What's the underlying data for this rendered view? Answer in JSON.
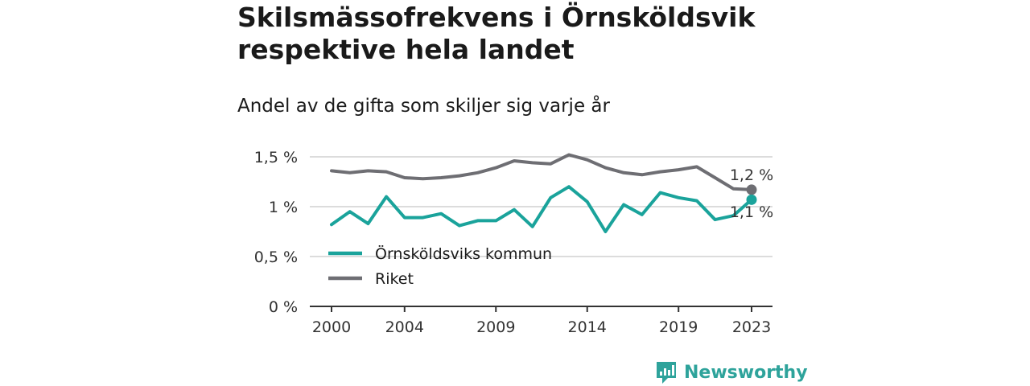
{
  "title": "Skilsmässofrekvens i Örnsköldsvik respektive hela landet",
  "subtitle": "Andel av de gifta som skiljer sig varje år",
  "brand": {
    "name": "Newsworthy",
    "icon": "newsworthy-logo-icon"
  },
  "colors": {
    "kommun": "#1aa39b",
    "riket": "#6e6e73",
    "grid": "#d0d0d0",
    "axis": "#333333",
    "brand": "#2ea39b"
  },
  "chart_data": {
    "type": "line",
    "title": "Skilsmässofrekvens i Örnsköldsvik respektive hela landet",
    "subtitle": "Andel av de gifta som skiljer sig varje år",
    "x": [
      2000,
      2001,
      2002,
      2003,
      2004,
      2005,
      2006,
      2007,
      2008,
      2009,
      2010,
      2011,
      2012,
      2013,
      2014,
      2015,
      2016,
      2017,
      2018,
      2019,
      2020,
      2021,
      2022,
      2023
    ],
    "x_ticks": [
      2000,
      2004,
      2009,
      2014,
      2019,
      2023
    ],
    "x_tick_labels": [
      "2000",
      "2004",
      "2009",
      "2014",
      "2019",
      "2023"
    ],
    "y_ticks": [
      0,
      0.5,
      1,
      1.5
    ],
    "y_tick_labels": [
      "0 %",
      "0,5 %",
      "1 %",
      "1,5 %"
    ],
    "ylim": [
      0,
      1.5
    ],
    "grid": true,
    "legend_position": "bottom-left",
    "series": [
      {
        "name": "Örnsköldsviks kommun",
        "key": "kommun",
        "values": [
          0.82,
          0.95,
          0.83,
          1.1,
          0.89,
          0.89,
          0.93,
          0.81,
          0.86,
          0.86,
          0.97,
          0.8,
          1.09,
          1.2,
          1.05,
          0.75,
          1.02,
          0.92,
          1.14,
          1.09,
          1.06,
          0.87,
          0.91,
          1.07
        ],
        "end_label": "1,1 %"
      },
      {
        "name": "Riket",
        "key": "riket",
        "values": [
          1.36,
          1.34,
          1.36,
          1.35,
          1.29,
          1.28,
          1.29,
          1.31,
          1.34,
          1.39,
          1.46,
          1.44,
          1.43,
          1.52,
          1.47,
          1.39,
          1.34,
          1.32,
          1.35,
          1.37,
          1.4,
          1.29,
          1.18,
          1.17
        ],
        "end_label": "1,2 %"
      }
    ]
  }
}
